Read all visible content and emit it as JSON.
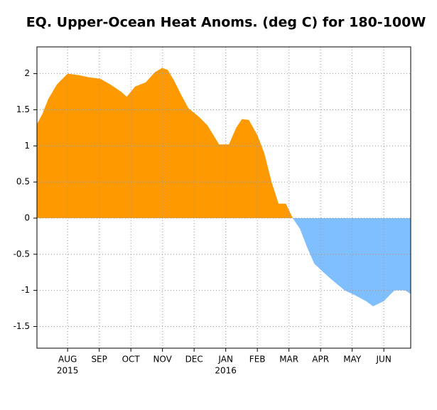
{
  "chart_data": {
    "type": "area",
    "title": "EQ. Upper-Ocean Heat Anoms. (deg C) for 180-100W",
    "x": [
      0.03,
      0.21,
      0.39,
      0.66,
      1.0,
      1.34,
      1.67,
      2.03,
      2.35,
      2.69,
      2.87,
      3.13,
      3.47,
      3.76,
      3.99,
      4.17,
      4.37,
      4.6,
      4.82,
      5.16,
      5.43,
      5.79,
      6.1,
      6.33,
      6.51,
      6.73,
      7.0,
      7.22,
      7.45,
      7.67,
      7.9,
      8.12,
      8.35,
      8.57,
      8.8,
      9.09,
      9.43,
      9.76,
      10.1,
      10.44,
      10.66,
      11.0,
      11.22,
      11.34,
      11.67,
      11.85
    ],
    "values": [
      1.3,
      1.45,
      1.65,
      1.85,
      2.0,
      1.98,
      1.95,
      1.93,
      1.85,
      1.75,
      1.68,
      1.82,
      1.88,
      2.02,
      2.08,
      2.05,
      1.9,
      1.7,
      1.52,
      1.4,
      1.28,
      1.02,
      1.02,
      1.25,
      1.37,
      1.36,
      1.15,
      0.9,
      0.5,
      0.2,
      0.2,
      0.0,
      -0.15,
      -0.4,
      -0.63,
      -0.75,
      -0.88,
      -1.0,
      -1.07,
      -1.15,
      -1.22,
      -1.15,
      -1.05,
      -1.0,
      -1.0,
      -1.05
    ],
    "positive_color": "#ff9900",
    "negative_color": "#80bfff",
    "xlim": [
      0.03,
      11.85
    ],
    "xticks": [
      {
        "value": 1,
        "label": "AUG"
      },
      {
        "value": 2,
        "label": "SEP"
      },
      {
        "value": 3,
        "label": "OCT"
      },
      {
        "value": 4,
        "label": "NOV"
      },
      {
        "value": 5,
        "label": "DEC"
      },
      {
        "value": 6,
        "label": "JAN"
      },
      {
        "value": 7,
        "label": "FEB"
      },
      {
        "value": 8,
        "label": "MAR"
      },
      {
        "value": 9,
        "label": "APR"
      },
      {
        "value": 10,
        "label": "MAY"
      },
      {
        "value": 11,
        "label": "JUN"
      }
    ],
    "year_labels": [
      {
        "value": 1,
        "label": "2015"
      },
      {
        "value": 6,
        "label": "2016"
      }
    ],
    "ylim": [
      -1.8,
      2.37
    ],
    "yticks": [
      -1.5,
      -1,
      -0.5,
      0,
      0.5,
      1,
      1.5,
      2
    ],
    "grid": true
  }
}
